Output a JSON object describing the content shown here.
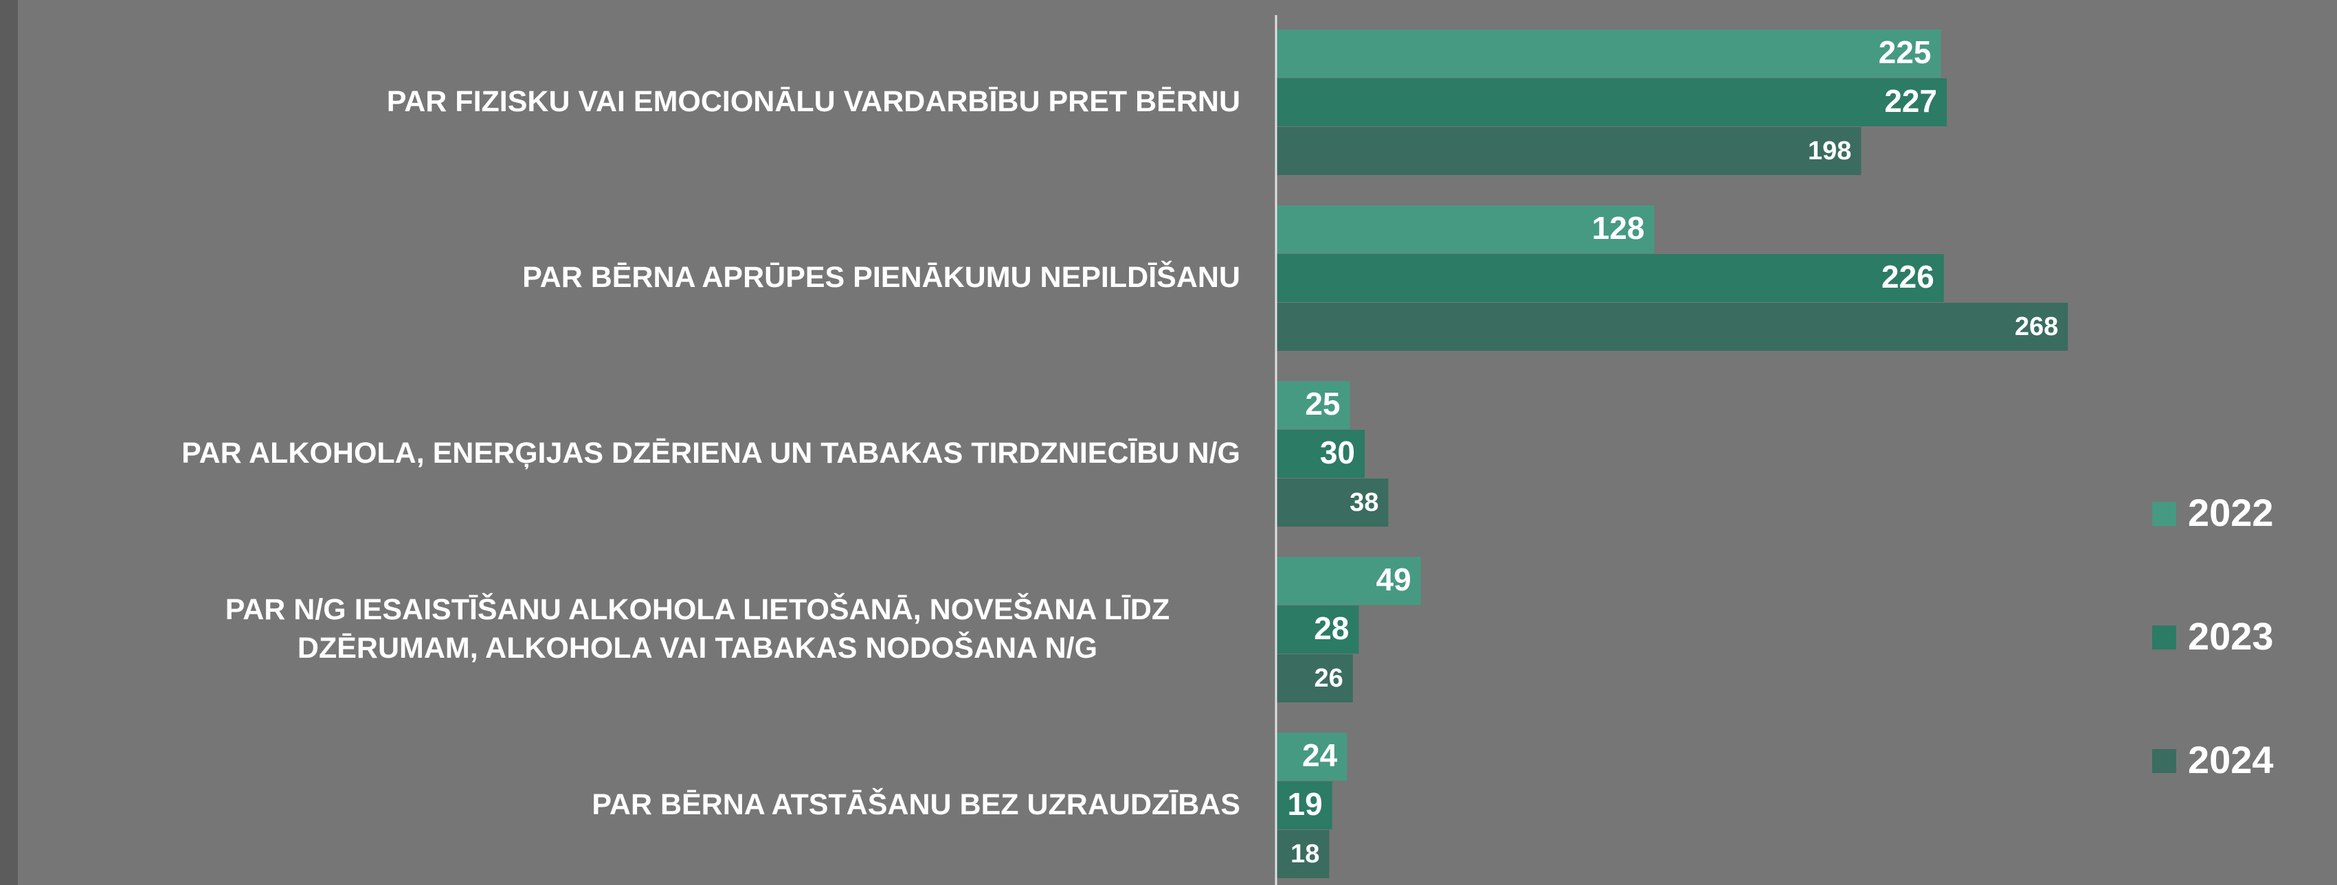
{
  "chart_data": {
    "type": "barh",
    "categories": [
      "PAR FIZISKU VAI EMOCIONĀLU VARDARBĪBU PRET BĒRNU",
      "PAR BĒRNA APRŪPES PIENĀKUMU NEPILDĪŠANU",
      "PAR ALKOHOLA, ENERĢIJAS DZĒRIENA UN TABAKAS TIRDZNIECĪBU N/G",
      "PAR N/G IESAISTĪŠANU ALKOHOLA LIETOŠANĀ, NOVEŠANA LĪDZ DZĒRUMAM, ALKOHOLA VAI TABAKAS NODOŠANA N/G",
      "PAR BĒRNA ATSTĀŠANU BEZ UZRAUDZĪBAS"
    ],
    "series": [
      {
        "name": "2022",
        "color": "#469a82",
        "values": [
          225,
          128,
          25,
          49,
          24
        ]
      },
      {
        "name": "2023",
        "color": "#2c7b65",
        "values": [
          227,
          226,
          30,
          28,
          19
        ]
      },
      {
        "name": "2024",
        "color": "#3a6d5f",
        "values": [
          198,
          268,
          38,
          26,
          18
        ]
      }
    ],
    "legend": "right"
  }
}
